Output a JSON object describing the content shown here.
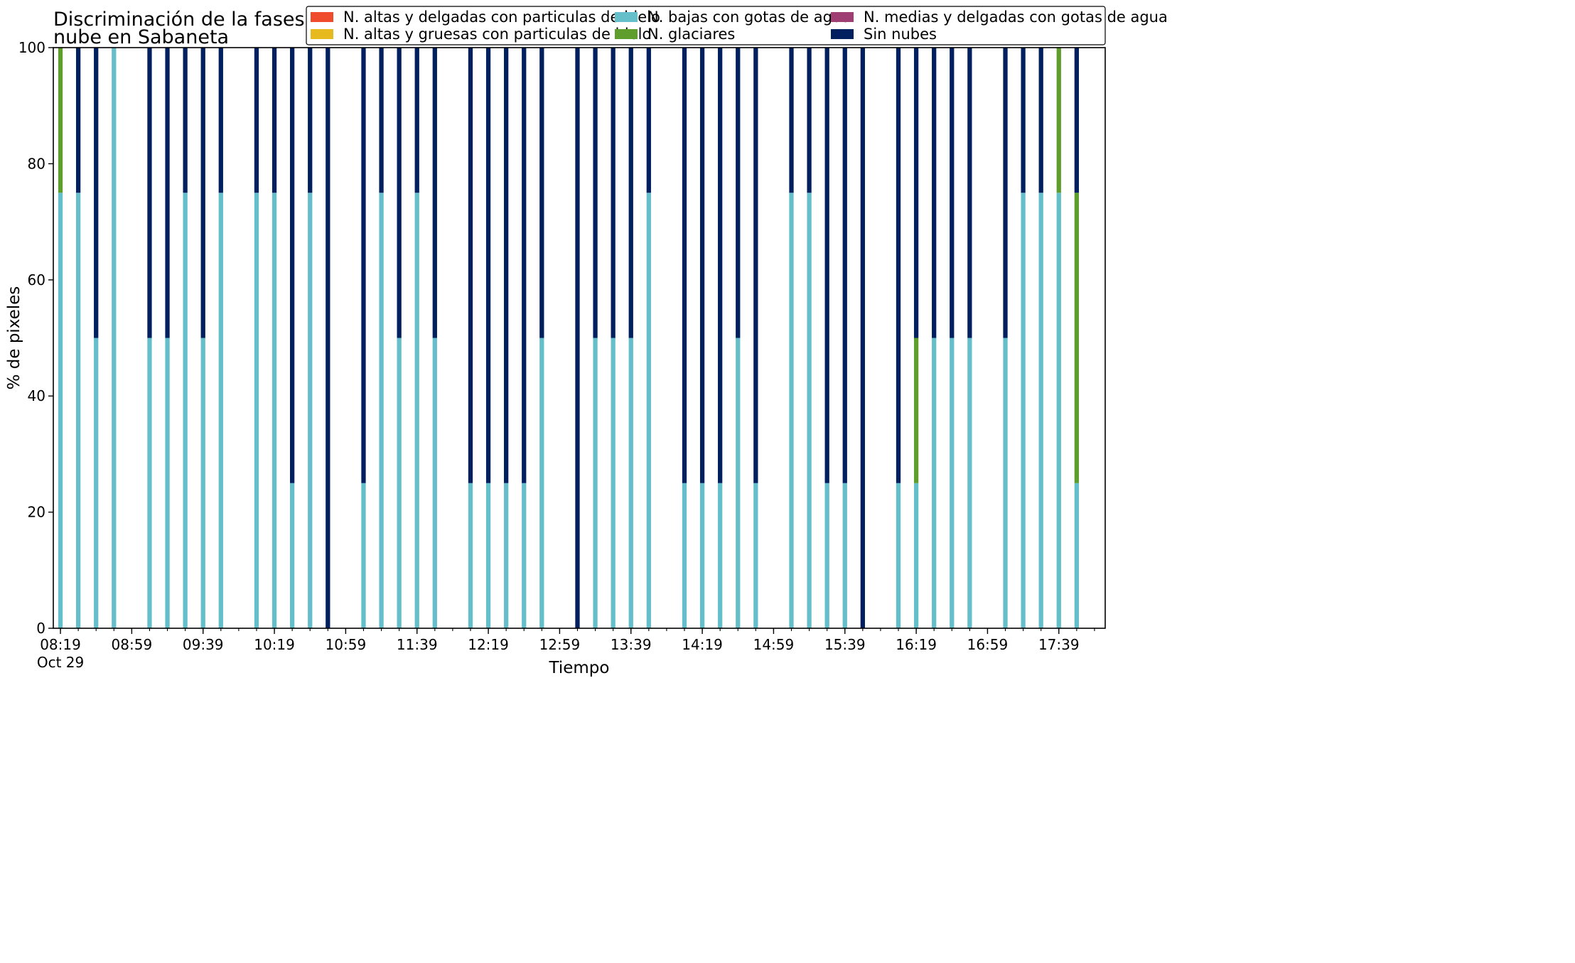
{
  "chart_data": {
    "type": "bar",
    "stacked": true,
    "title": "Discriminación de la fases de la\nnube en Sabaneta",
    "xlabel": "Tiempo",
    "ylabel": "% de pixeles",
    "ylim": [
      0,
      100
    ],
    "yticks": [
      0,
      20,
      40,
      60,
      80,
      100
    ],
    "xlim": [
      "08:15",
      "18:05"
    ],
    "grid": false,
    "legend_position": "top-right",
    "xticks": [
      {
        "time": "08:19",
        "label": "08:19",
        "sublabel": "Oct 29"
      },
      {
        "time": "08:59",
        "label": "08:59"
      },
      {
        "time": "09:39",
        "label": "09:39"
      },
      {
        "time": "10:19",
        "label": "10:19"
      },
      {
        "time": "10:59",
        "label": "10:59"
      },
      {
        "time": "11:39",
        "label": "11:39"
      },
      {
        "time": "12:19",
        "label": "12:19"
      },
      {
        "time": "12:59",
        "label": "12:59"
      },
      {
        "time": "13:39",
        "label": "13:39"
      },
      {
        "time": "14:19",
        "label": "14:19"
      },
      {
        "time": "14:59",
        "label": "14:59"
      },
      {
        "time": "15:39",
        "label": "15:39"
      },
      {
        "time": "16:19",
        "label": "16:19"
      },
      {
        "time": "16:59",
        "label": "16:59"
      },
      {
        "time": "17:39",
        "label": "17:39"
      }
    ],
    "x": [
      "08:19",
      "08:29",
      "08:39",
      "08:49",
      "09:09",
      "09:19",
      "09:29",
      "09:39",
      "09:49",
      "10:09",
      "10:19",
      "10:29",
      "10:39",
      "10:49",
      "11:09",
      "11:19",
      "11:29",
      "11:39",
      "11:49",
      "12:09",
      "12:19",
      "12:29",
      "12:39",
      "12:49",
      "13:09",
      "13:19",
      "13:29",
      "13:39",
      "13:49",
      "14:09",
      "14:19",
      "14:29",
      "14:39",
      "14:49",
      "15:09",
      "15:19",
      "15:29",
      "15:39",
      "15:49",
      "16:09",
      "16:19",
      "16:29",
      "16:39",
      "16:49",
      "17:09",
      "17:19",
      "17:29",
      "17:39",
      "17:49"
    ],
    "series": [
      {
        "name": "N. altas y delgadas con particulas de hielo",
        "color": "#ee4c2c",
        "values": [
          0,
          0,
          0,
          0,
          0,
          0,
          0,
          0,
          0,
          0,
          0,
          0,
          0,
          0,
          0,
          0,
          0,
          0,
          0,
          0,
          0,
          0,
          0,
          0,
          0,
          0,
          0,
          0,
          0,
          0,
          0,
          0,
          0,
          0,
          0,
          0,
          0,
          0,
          0,
          0,
          0,
          0,
          0,
          0,
          0,
          0,
          0,
          0,
          0
        ]
      },
      {
        "name": "N. altas y gruesas con particulas de hielo",
        "color": "#e6b91e",
        "values": [
          0,
          0,
          0,
          0,
          0,
          0,
          0,
          0,
          0,
          0,
          0,
          0,
          0,
          0,
          0,
          0,
          0,
          0,
          0,
          0,
          0,
          0,
          0,
          0,
          0,
          0,
          0,
          0,
          0,
          0,
          0,
          0,
          0,
          0,
          0,
          0,
          0,
          0,
          0,
          0,
          0,
          0,
          0,
          0,
          0,
          0,
          0,
          0,
          0
        ]
      },
      {
        "name": "N. bajas con gotas de agua",
        "color": "#65bfca",
        "values": [
          75,
          75,
          50,
          100,
          50,
          50,
          75,
          50,
          75,
          75,
          75,
          25,
          75,
          0,
          25,
          75,
          50,
          75,
          50,
          25,
          25,
          25,
          25,
          50,
          0,
          50,
          50,
          50,
          75,
          25,
          25,
          25,
          50,
          25,
          75,
          75,
          25,
          25,
          0,
          25,
          25,
          50,
          50,
          50,
          50,
          75,
          75,
          75,
          25
        ]
      },
      {
        "name": "N. glaciares",
        "color": "#5f9e2d",
        "values": [
          25,
          0,
          0,
          0,
          0,
          0,
          0,
          0,
          0,
          0,
          0,
          0,
          0,
          0,
          0,
          0,
          0,
          0,
          0,
          0,
          0,
          0,
          0,
          0,
          0,
          0,
          0,
          0,
          0,
          0,
          0,
          0,
          0,
          0,
          0,
          0,
          0,
          0,
          0,
          0,
          25,
          0,
          0,
          0,
          0,
          0,
          0,
          25,
          50
        ]
      },
      {
        "name": "N. medias y delgadas con gotas de agua",
        "color": "#9e3e72",
        "values": [
          0,
          0,
          0,
          0,
          0,
          0,
          0,
          0,
          0,
          0,
          0,
          0,
          0,
          0,
          0,
          0,
          0,
          0,
          0,
          0,
          0,
          0,
          0,
          0,
          0,
          0,
          0,
          0,
          0,
          0,
          0,
          0,
          0,
          0,
          0,
          0,
          0,
          0,
          0,
          0,
          0,
          0,
          0,
          0,
          0,
          0,
          0,
          0,
          0
        ]
      },
      {
        "name": "Sin nubes",
        "color": "#001f5f",
        "values": [
          0,
          25,
          50,
          0,
          50,
          50,
          25,
          50,
          25,
          25,
          25,
          75,
          25,
          100,
          75,
          25,
          50,
          25,
          50,
          75,
          75,
          75,
          75,
          50,
          100,
          50,
          50,
          50,
          25,
          75,
          75,
          75,
          50,
          75,
          25,
          25,
          75,
          75,
          100,
          75,
          50,
          50,
          50,
          50,
          50,
          25,
          25,
          0,
          25
        ]
      }
    ]
  }
}
